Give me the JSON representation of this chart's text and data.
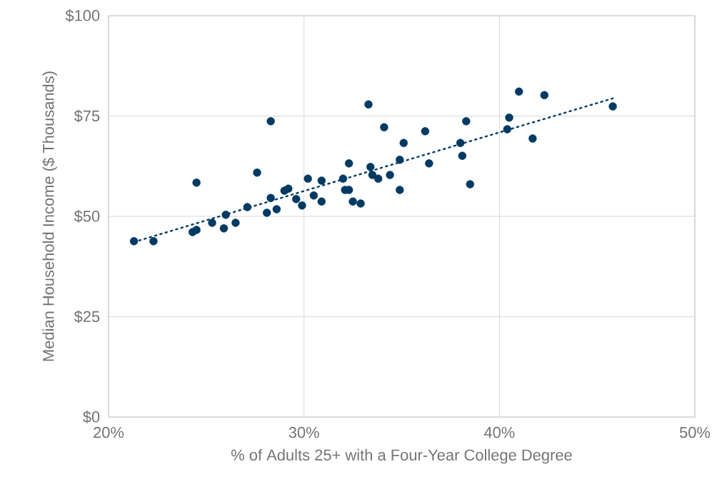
{
  "chart_data": {
    "type": "scatter",
    "xlabel": "% of Adults 25+ with a Four-Year College Degree",
    "ylabel": "Median Household Income ($ Thousands)",
    "xlim": [
      20,
      50
    ],
    "ylim": [
      0,
      100
    ],
    "xticks": [
      {
        "value": 20,
        "label": "20%"
      },
      {
        "value": 30,
        "label": "30%"
      },
      {
        "value": 40,
        "label": "40%"
      },
      {
        "value": 50,
        "label": "50%"
      }
    ],
    "yticks": [
      {
        "value": 0,
        "label": "$0"
      },
      {
        "value": 25,
        "label": "$25"
      },
      {
        "value": 50,
        "label": "$50"
      },
      {
        "value": 75,
        "label": "$75"
      },
      {
        "value": 100,
        "label": "$100"
      }
    ],
    "grid": true,
    "series": [
      {
        "marker": "circle",
        "color": "#003a63",
        "x": [
          21.3,
          22.3,
          24.3,
          24.5,
          24.5,
          25.3,
          25.9,
          26.0,
          26.5,
          27.1,
          27.6,
          28.1,
          28.3,
          28.3,
          28.6,
          29.0,
          29.2,
          29.6,
          29.9,
          30.2,
          30.5,
          30.9,
          30.9,
          32.0,
          32.1,
          32.3,
          32.3,
          32.5,
          32.9,
          33.3,
          33.4,
          33.5,
          33.8,
          34.1,
          34.4,
          34.9,
          34.9,
          35.1,
          36.2,
          36.4,
          38.0,
          38.1,
          38.3,
          38.5,
          40.4,
          40.5,
          41.0,
          41.7,
          42.3,
          45.8
        ],
        "values": [
          43.8,
          43.8,
          46.1,
          46.6,
          58.4,
          48.4,
          47.0,
          50.4,
          48.4,
          52.3,
          60.9,
          50.9,
          54.6,
          73.7,
          51.8,
          56.4,
          56.9,
          54.3,
          52.7,
          59.4,
          55.2,
          53.7,
          58.9,
          59.4,
          56.6,
          63.2,
          56.6,
          53.7,
          53.2,
          77.9,
          62.3,
          60.3,
          59.4,
          72.2,
          60.3,
          56.6,
          64.1,
          68.3,
          71.2,
          63.2,
          68.3,
          65.1,
          73.7,
          58.0,
          71.7,
          74.6,
          81.1,
          69.4,
          80.2,
          77.4
        ]
      },
      {
        "type": "line",
        "marker": "none",
        "color": "#003a63",
        "line_style": "dotted",
        "x": [
          21.3,
          45.8
        ],
        "values": [
          43.6,
          79.4
        ]
      }
    ]
  }
}
